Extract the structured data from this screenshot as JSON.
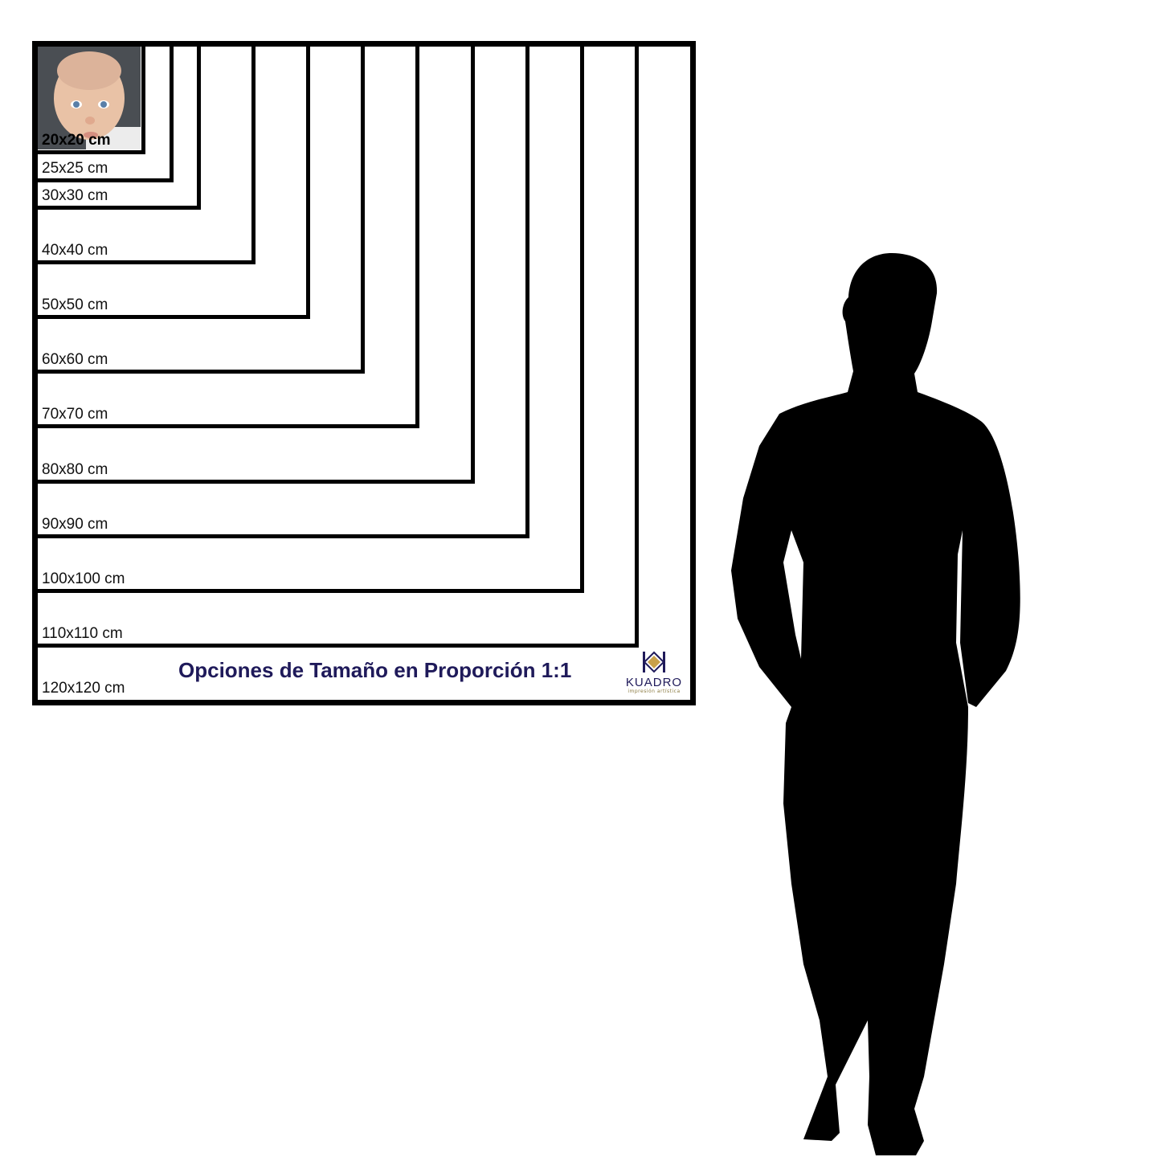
{
  "sizes": [
    {
      "cm": 20,
      "label": "20x20 cm"
    },
    {
      "cm": 25,
      "label": "25x25 cm"
    },
    {
      "cm": 30,
      "label": "30x30 cm"
    },
    {
      "cm": 40,
      "label": "40x40 cm"
    },
    {
      "cm": 50,
      "label": "50x50 cm"
    },
    {
      "cm": 60,
      "label": "60x60 cm"
    },
    {
      "cm": 70,
      "label": "70x70 cm"
    },
    {
      "cm": 80,
      "label": "80x80 cm"
    },
    {
      "cm": 90,
      "label": "90x90 cm"
    },
    {
      "cm": 100,
      "label": "100x100 cm"
    },
    {
      "cm": 110,
      "label": "110x110 cm"
    },
    {
      "cm": 120,
      "label": "120x120 cm"
    }
  ],
  "title": "Opciones de Tamaño en Proporción 1:1",
  "logo": {
    "word": "KUADRO",
    "tagline": "impresión artística",
    "brand_color": "#1f1a5a",
    "accent_color": "#c9a14a"
  },
  "silhouette": "standing-man-silhouette"
}
